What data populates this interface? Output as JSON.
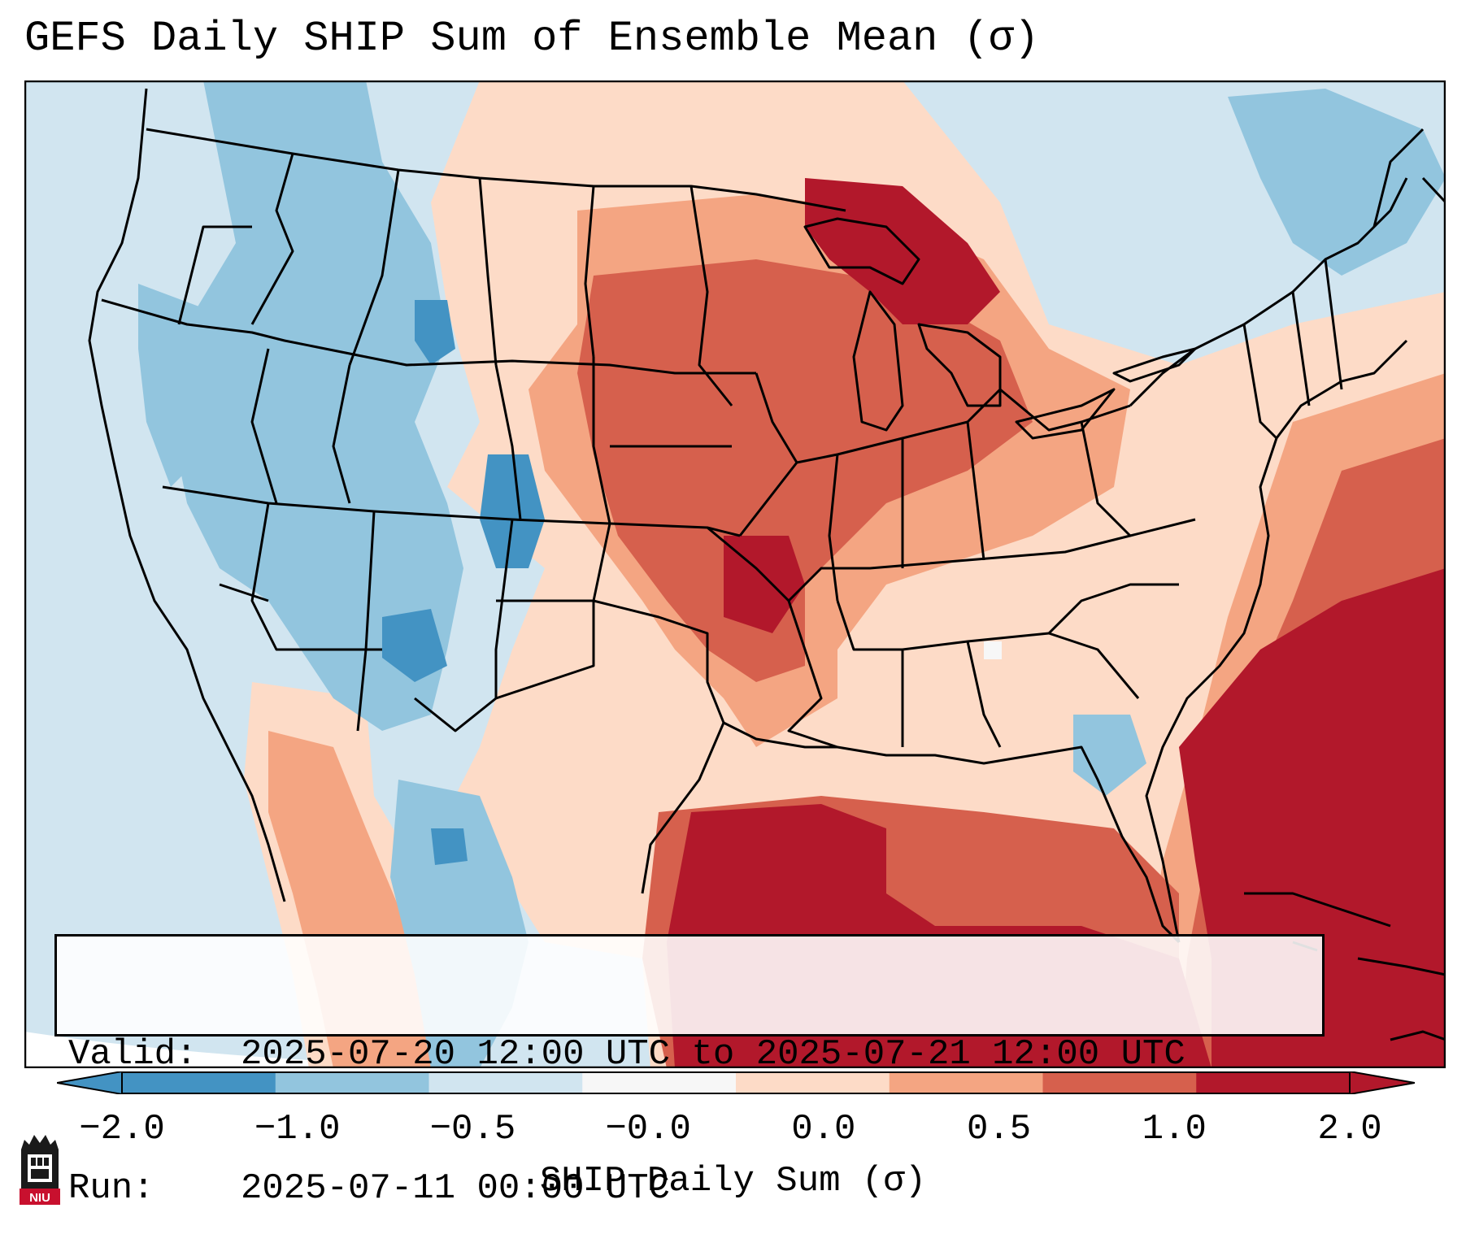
{
  "title": "GEFS Daily SHIP Sum of Ensemble Mean (σ)",
  "info": {
    "valid_label": "Valid:",
    "valid_value": "2025-07-20 12:00 UTC to 2025-07-21 12:00 UTC",
    "run_label": "Run:",
    "run_value": "2025-07-11 00:00 UTC"
  },
  "colorbar": {
    "label": "SHIP Daily Sum (σ)",
    "ticks": [
      "−2.0",
      "−1.0",
      "−0.5",
      "−0.0",
      "0.0",
      "0.5",
      "1.0",
      "2.0"
    ],
    "colors": [
      "#4393c3",
      "#92c5de",
      "#d1e5f0",
      "#f7f7f7",
      "#fddbc7",
      "#f4a582",
      "#d6604d",
      "#b2182b"
    ],
    "under_color": "#2166ac",
    "over_color": "#67001f"
  },
  "logo": {
    "text": "NIU"
  },
  "colors": {
    "strong_negative": "#4393c3",
    "negative": "#92c5de",
    "weak_negative": "#d1e5f0",
    "weak_positive": "#fddbc7",
    "positive": "#f4a582",
    "strong_positive": "#d6604d",
    "extreme_positive": "#b2182b"
  },
  "map_regions": [
    {
      "name": "pacific-background",
      "level": "weak_negative"
    },
    {
      "name": "northern-rockies-negative",
      "level": "negative"
    },
    {
      "name": "colorado-plateau-negative",
      "level": "strong_negative"
    },
    {
      "name": "northern-plains-positive",
      "level": "positive"
    },
    {
      "name": "central-plains-positive",
      "level": "strong_positive"
    },
    {
      "name": "great-lakes-positive",
      "level": "extreme_positive"
    },
    {
      "name": "gulf-of-mexico-extreme",
      "level": "extreme_positive"
    },
    {
      "name": "western-atlantic-extreme",
      "level": "extreme_positive"
    }
  ]
}
